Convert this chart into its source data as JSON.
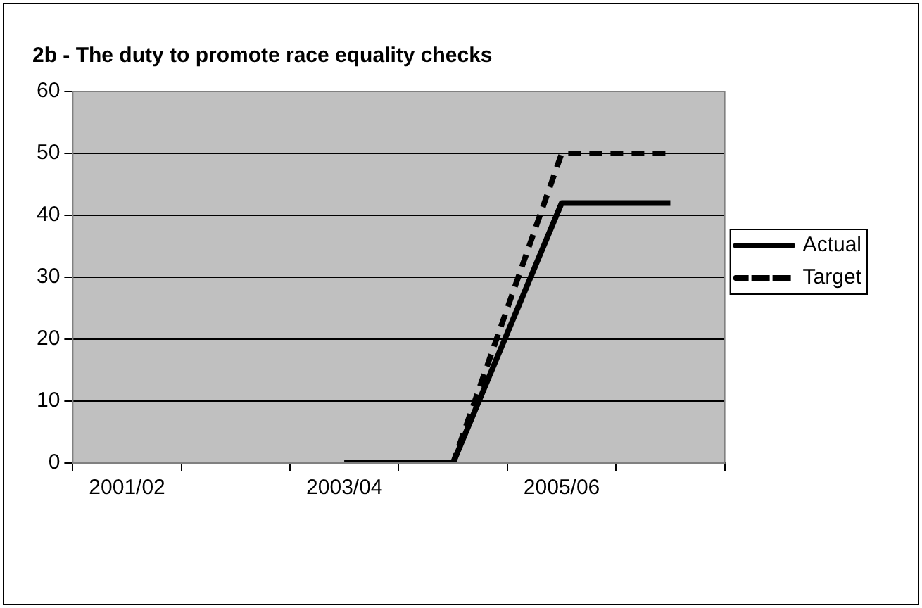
{
  "chart_data": {
    "type": "line",
    "title": "2b - The duty to promote race equality checks",
    "categories": [
      "2001/02",
      null,
      "2003/04",
      null,
      "2005/06",
      null
    ],
    "series": [
      {
        "name": "Actual",
        "color": "#000000",
        "line_style": "solid",
        "values": [
          null,
          null,
          0,
          0,
          42,
          42
        ]
      },
      {
        "name": "Target",
        "color": "#000000",
        "line_style": "dashed",
        "values": [
          null,
          null,
          0,
          0,
          50,
          50
        ]
      }
    ],
    "ylim": [
      0,
      60
    ],
    "yticks": [
      0,
      10,
      20,
      30,
      40,
      50,
      60
    ],
    "grid": "y",
    "legend": "right",
    "marker": "none"
  }
}
